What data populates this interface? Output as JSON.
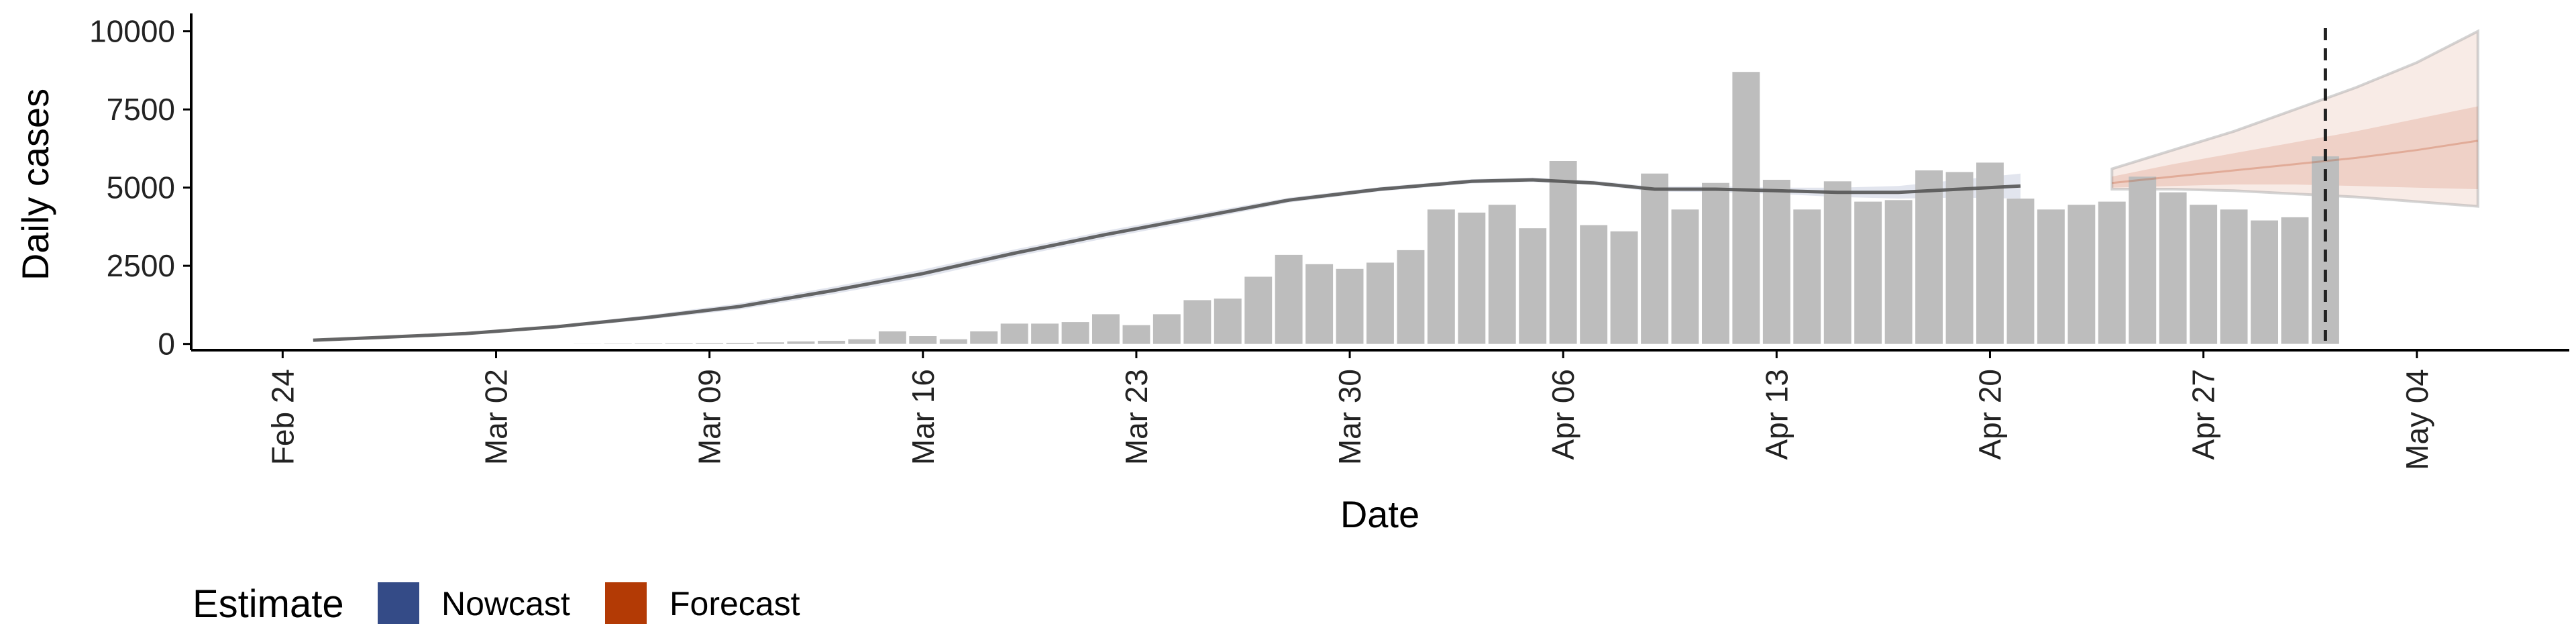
{
  "chart_data": {
    "type": "bar",
    "xlabel": "Date",
    "ylabel": "Daily cases",
    "x_range": [
      "2020-02-21",
      "2020-05-09"
    ],
    "ylim": [
      -200,
      10400
    ],
    "yticks": [
      0,
      2500,
      5000,
      7500,
      10000
    ],
    "ytick_labels": [
      "0",
      "2500",
      "5000",
      "7500",
      "10000"
    ],
    "xtick_dates": [
      "2020-02-24",
      "2020-03-02",
      "2020-03-09",
      "2020-03-16",
      "2020-03-23",
      "2020-03-30",
      "2020-04-06",
      "2020-04-13",
      "2020-04-20",
      "2020-04-27",
      "2020-05-04"
    ],
    "xtick_labels": [
      "Feb 24",
      "Mar 02",
      "Mar 09",
      "Mar 16",
      "Mar 23",
      "Mar 30",
      "Apr 06",
      "Apr 13",
      "Apr 20",
      "Apr 27",
      "May 04"
    ],
    "grid": false,
    "reported_cases": {
      "dates": [
        "2020-03-05",
        "2020-03-06",
        "2020-03-07",
        "2020-03-08",
        "2020-03-09",
        "2020-03-10",
        "2020-03-11",
        "2020-03-12",
        "2020-03-13",
        "2020-03-14",
        "2020-03-15",
        "2020-03-16",
        "2020-03-17",
        "2020-03-18",
        "2020-03-19",
        "2020-03-20",
        "2020-03-21",
        "2020-03-22",
        "2020-03-23",
        "2020-03-24",
        "2020-03-25",
        "2020-03-26",
        "2020-03-27",
        "2020-03-28",
        "2020-03-29",
        "2020-03-30",
        "2020-03-31",
        "2020-04-01",
        "2020-04-02",
        "2020-04-03",
        "2020-04-04",
        "2020-04-05",
        "2020-04-06",
        "2020-04-07",
        "2020-04-08",
        "2020-04-09",
        "2020-04-10",
        "2020-04-11",
        "2020-04-12",
        "2020-04-13",
        "2020-04-14",
        "2020-04-15",
        "2020-04-16",
        "2020-04-17",
        "2020-04-18",
        "2020-04-19",
        "2020-04-20",
        "2020-04-21",
        "2020-04-22",
        "2020-04-23",
        "2020-04-24",
        "2020-04-25",
        "2020-04-26",
        "2020-04-27",
        "2020-04-28",
        "2020-04-29",
        "2020-04-30",
        "2020-05-01"
      ],
      "values": [
        5,
        10,
        15,
        20,
        25,
        35,
        50,
        80,
        100,
        150,
        400,
        250,
        150,
        400,
        650,
        650,
        700,
        950,
        600,
        950,
        1400,
        1450,
        2150,
        2850,
        2550,
        2400,
        2600,
        3000,
        4300,
        4200,
        4450,
        3700,
        5850,
        3800,
        3600,
        5450,
        4300,
        5150,
        8700,
        5250,
        4300,
        5200,
        4550,
        4600,
        5550,
        5500,
        5800,
        4650,
        4300,
        4450,
        4550,
        5350,
        4850,
        4450,
        4300,
        3950,
        4050,
        6000
      ]
    },
    "nowcast": {
      "dates": [
        "2020-02-25",
        "2020-02-27",
        "2020-03-01",
        "2020-03-04",
        "2020-03-07",
        "2020-03-10",
        "2020-03-13",
        "2020-03-16",
        "2020-03-19",
        "2020-03-22",
        "2020-03-25",
        "2020-03-28",
        "2020-03-31",
        "2020-04-03",
        "2020-04-05",
        "2020-04-07",
        "2020-04-09",
        "2020-04-11",
        "2020-04-13",
        "2020-04-15",
        "2020-04-17",
        "2020-04-19",
        "2020-04-21"
      ],
      "median": [
        120,
        200,
        330,
        550,
        850,
        1200,
        1700,
        2250,
        2900,
        3500,
        4050,
        4600,
        4950,
        5200,
        5250,
        5150,
        4950,
        4950,
        4900,
        4850,
        4850,
        4950,
        5050
      ],
      "lower": [
        110,
        180,
        300,
        500,
        780,
        1100,
        1580,
        2120,
        2780,
        3380,
        3940,
        4520,
        4880,
        5130,
        5180,
        5080,
        4870,
        4860,
        4800,
        4700,
        4650,
        4680,
        4650
      ],
      "upper": [
        130,
        220,
        360,
        600,
        920,
        1300,
        1820,
        2380,
        3020,
        3620,
        4160,
        4680,
        5020,
        5270,
        5320,
        5220,
        5030,
        5040,
        5000,
        5000,
        5050,
        5250,
        5450
      ]
    },
    "forecast": {
      "dates": [
        "2020-04-24",
        "2020-04-26",
        "2020-04-28",
        "2020-04-30",
        "2020-05-02",
        "2020-05-04",
        "2020-05-06"
      ],
      "median": [
        5150,
        5350,
        5550,
        5750,
        5950,
        6200,
        6500
      ],
      "inner_lower": [
        5000,
        5050,
        5100,
        5100,
        5050,
        5000,
        4950
      ],
      "inner_upper": [
        5350,
        5750,
        6100,
        6450,
        6800,
        7200,
        7600
      ],
      "outer_lower": [
        4950,
        4950,
        4900,
        4800,
        4700,
        4550,
        4400
      ],
      "outer_upper": [
        5600,
        6200,
        6800,
        7500,
        8200,
        9000,
        10000
      ]
    },
    "forecast_date": "2020-05-01",
    "colors": {
      "bars": "#bdbdbd",
      "nowcast": "#3b4f8c",
      "forecast": "#b83a0b",
      "median_line": "#555555",
      "axis": "#000000",
      "forecast_date_line": "#222222"
    },
    "legend": {
      "title": "Estimate",
      "placement": "bottom-left",
      "items": [
        {
          "label": "Nowcast",
          "color": "#344b87"
        },
        {
          "label": "Forecast",
          "color": "#b33a05"
        }
      ]
    }
  }
}
